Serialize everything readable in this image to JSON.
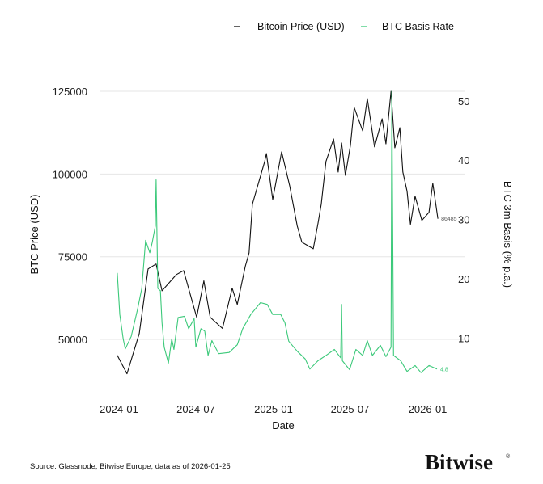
{
  "chart_data": {
    "type": "line",
    "title": "",
    "xlabel": "Date",
    "ylabel_left": "BTC Price (USD)",
    "ylabel_right": "BTC 3m Basis (% p.a.)",
    "x_ticks": [
      "2024-01",
      "2024-07",
      "2025-01",
      "2025-07",
      "2026-01"
    ],
    "y_left_ticks": [
      50000,
      75000,
      100000,
      125000
    ],
    "y_right_ticks": [
      10,
      20,
      30,
      40,
      50
    ],
    "y_left_range": [
      37800,
      125000
    ],
    "y_right_range": [
      3,
      51.6
    ],
    "x_range": [
      "2023-12-20",
      "2026-03-01"
    ],
    "grid": "horizontal (left axis)",
    "legend_position": "top-right",
    "colors": {
      "price": "#111111",
      "basis": "#3cc97a"
    },
    "series": [
      {
        "name": "Bitcoin Price (USD)",
        "axis": "left",
        "end_label": "86485",
        "points": [
          [
            "2023-12-28",
            45200
          ],
          [
            "2024-01-20",
            39600
          ],
          [
            "2024-02-18",
            51800
          ],
          [
            "2024-03-10",
            71300
          ],
          [
            "2024-03-29",
            72800
          ],
          [
            "2024-04-12",
            64700
          ],
          [
            "2024-05-16",
            69600
          ],
          [
            "2024-06-02",
            70800
          ],
          [
            "2024-07-03",
            56700
          ],
          [
            "2024-07-20",
            67700
          ],
          [
            "2024-08-04",
            56700
          ],
          [
            "2024-09-02",
            53300
          ],
          [
            "2024-09-25",
            65500
          ],
          [
            "2024-10-07",
            60600
          ],
          [
            "2024-10-26",
            72100
          ],
          [
            "2024-11-04",
            76200
          ],
          [
            "2024-11-12",
            90900
          ],
          [
            "2024-12-11",
            103800
          ],
          [
            "2024-12-15",
            106200
          ],
          [
            "2024-12-30",
            92300
          ],
          [
            "2025-01-20",
            106700
          ],
          [
            "2025-02-08",
            96500
          ],
          [
            "2025-02-26",
            84300
          ],
          [
            "2025-03-09",
            79400
          ],
          [
            "2025-04-05",
            77400
          ],
          [
            "2025-04-16",
            85000
          ],
          [
            "2025-04-24",
            90900
          ],
          [
            "2025-05-05",
            103800
          ],
          [
            "2025-05-23",
            110600
          ],
          [
            "2025-06-03",
            100600
          ],
          [
            "2025-06-11",
            109400
          ],
          [
            "2025-06-20",
            99600
          ],
          [
            "2025-07-02",
            108600
          ],
          [
            "2025-07-11",
            120100
          ],
          [
            "2025-07-31",
            113000
          ],
          [
            "2025-08-11",
            122800
          ],
          [
            "2025-08-28",
            108200
          ],
          [
            "2025-09-15",
            116700
          ],
          [
            "2025-09-24",
            109100
          ],
          [
            "2025-10-06",
            125000
          ],
          [
            "2025-10-15",
            107900
          ],
          [
            "2025-10-27",
            114000
          ],
          [
            "2025-11-03",
            100600
          ],
          [
            "2025-11-13",
            94800
          ],
          [
            "2025-11-21",
            84800
          ],
          [
            "2025-12-02",
            93300
          ],
          [
            "2025-12-18",
            86000
          ],
          [
            "2026-01-04",
            88400
          ],
          [
            "2026-01-13",
            97200
          ],
          [
            "2026-01-25",
            86485
          ]
        ]
      },
      {
        "name": "BTC Basis Rate",
        "axis": "right",
        "end_label": "4.8",
        "points": [
          [
            "2023-12-28",
            21.0
          ],
          [
            "2024-01-01",
            16.3
          ],
          [
            "2024-01-03",
            14.0
          ],
          [
            "2024-01-11",
            9.9
          ],
          [
            "2024-01-16",
            8.2
          ],
          [
            "2024-01-30",
            10.3
          ],
          [
            "2024-02-14",
            14.9
          ],
          [
            "2024-02-24",
            18.4
          ],
          [
            "2024-03-04",
            26.5
          ],
          [
            "2024-03-14",
            24.4
          ],
          [
            "2024-03-20",
            26.2
          ],
          [
            "2024-03-27",
            28.9
          ],
          [
            "2024-03-29",
            36.7
          ],
          [
            "2024-04-02",
            18.4
          ],
          [
            "2024-04-08",
            18.0
          ],
          [
            "2024-04-12",
            12.6
          ],
          [
            "2024-04-17",
            8.5
          ],
          [
            "2024-04-27",
            5.8
          ],
          [
            "2024-05-05",
            9.9
          ],
          [
            "2024-05-10",
            8.1
          ],
          [
            "2024-05-20",
            13.5
          ],
          [
            "2024-06-04",
            13.7
          ],
          [
            "2024-06-14",
            11.6
          ],
          [
            "2024-06-27",
            13.3
          ],
          [
            "2024-07-01",
            8.5
          ],
          [
            "2024-07-13",
            11.6
          ],
          [
            "2024-07-22",
            11.2
          ],
          [
            "2024-07-30",
            7.1
          ],
          [
            "2024-08-08",
            9.6
          ],
          [
            "2024-08-24",
            7.4
          ],
          [
            "2024-09-18",
            7.6
          ],
          [
            "2024-10-07",
            8.9
          ],
          [
            "2024-10-20",
            11.6
          ],
          [
            "2024-11-08",
            14.0
          ],
          [
            "2024-12-01",
            16.0
          ],
          [
            "2024-12-17",
            15.7
          ],
          [
            "2024-12-30",
            14.0
          ],
          [
            "2025-01-18",
            14.0
          ],
          [
            "2025-01-28",
            12.6
          ],
          [
            "2025-02-06",
            9.5
          ],
          [
            "2025-02-26",
            7.8
          ],
          [
            "2025-03-17",
            6.5
          ],
          [
            "2025-03-28",
            4.8
          ],
          [
            "2025-04-16",
            6.2
          ],
          [
            "2025-05-05",
            7.1
          ],
          [
            "2025-05-25",
            8.1
          ],
          [
            "2025-06-09",
            6.7
          ],
          [
            "2025-06-11",
            15.7
          ],
          [
            "2025-06-13",
            6.2
          ],
          [
            "2025-06-30",
            4.7
          ],
          [
            "2025-07-15",
            8.1
          ],
          [
            "2025-07-31",
            7.1
          ],
          [
            "2025-08-11",
            9.6
          ],
          [
            "2025-08-23",
            7.1
          ],
          [
            "2025-09-11",
            8.8
          ],
          [
            "2025-09-24",
            6.9
          ],
          [
            "2025-10-06",
            8.5
          ],
          [
            "2025-10-08",
            51.6
          ],
          [
            "2025-10-12",
            7.1
          ],
          [
            "2025-10-29",
            6.2
          ],
          [
            "2025-11-13",
            4.4
          ],
          [
            "2025-12-02",
            5.4
          ],
          [
            "2025-12-16",
            4.2
          ],
          [
            "2026-01-04",
            5.4
          ],
          [
            "2026-01-23",
            4.8
          ]
        ]
      }
    ]
  },
  "footer": {
    "source": "Source: Glassnode, Bitwise Europe; data as of 2026-01-25",
    "logo": "Bitwise"
  }
}
